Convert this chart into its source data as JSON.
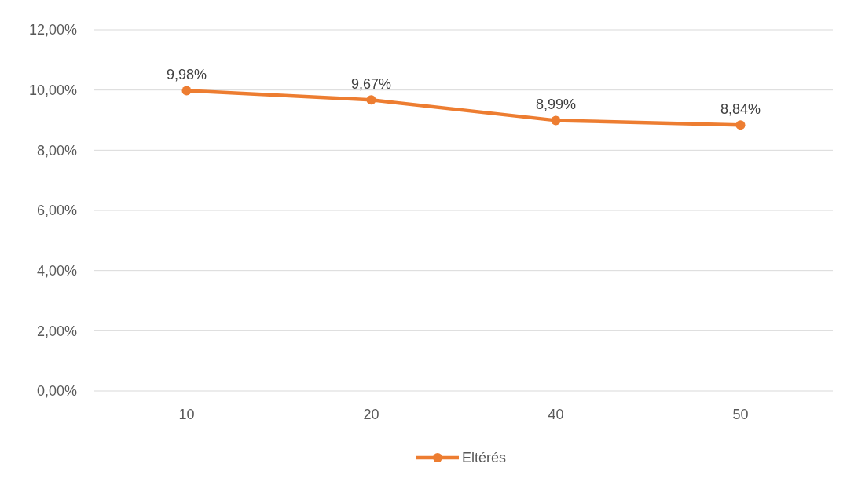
{
  "chart_data": {
    "type": "line",
    "categories": [
      "10",
      "20",
      "40",
      "50"
    ],
    "series": [
      {
        "name": "Eltérés",
        "color": "#ed7d31",
        "values": [
          9.98,
          9.67,
          8.99,
          8.84
        ],
        "value_labels": [
          "9,98%",
          "9,67%",
          "8,99%",
          "8,84%"
        ]
      }
    ],
    "ylim": [
      0,
      12
    ],
    "yticks": [
      {
        "value": 0,
        "label": "0,00%"
      },
      {
        "value": 2,
        "label": "2,00%"
      },
      {
        "value": 4,
        "label": "4,00%"
      },
      {
        "value": 6,
        "label": "6,00%"
      },
      {
        "value": 8,
        "label": "8,00%"
      },
      {
        "value": 10,
        "label": "10,00%"
      },
      {
        "value": 12,
        "label": "12,00%"
      }
    ],
    "grid": "y",
    "legend": "bottom",
    "marker": "circle",
    "line_style": "solid"
  }
}
